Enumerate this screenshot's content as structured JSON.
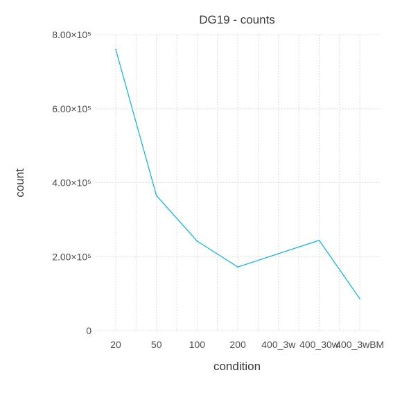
{
  "chart_data": {
    "type": "line",
    "title": "DG19 - counts",
    "xlabel": "condition",
    "ylabel": "count",
    "categories": [
      "20",
      "50",
      "100",
      "200",
      "400_3w",
      "400_30w",
      "400_3wBM"
    ],
    "series": [
      {
        "values": [
          760000,
          365000,
          242000,
          172000,
          208000,
          244000,
          86000
        ],
        "color": "#00b4e6"
      }
    ],
    "ylim": [
      0,
      800000
    ],
    "yticks": [
      0,
      200000,
      400000,
      600000,
      800000
    ],
    "ytick_labels": [
      "0",
      "2.00×10⁵",
      "4.00×10⁵",
      "6.00×10⁵",
      "8.00×10⁵"
    ],
    "grid": true,
    "legend": "none"
  }
}
